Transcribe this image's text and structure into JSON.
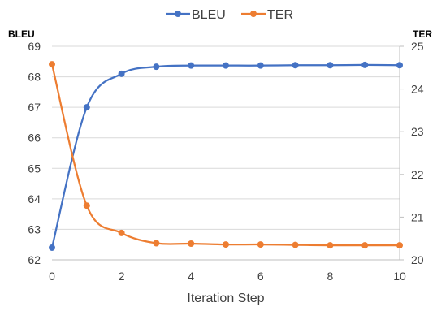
{
  "chart_data": {
    "type": "line",
    "x": [
      0,
      1,
      2,
      3,
      4,
      5,
      6,
      7,
      8,
      9,
      10
    ],
    "series": [
      {
        "name": "BLEU",
        "axis": "left",
        "color": "#4472C4",
        "values": [
          62.4,
          67.0,
          68.1,
          68.33,
          68.37,
          68.37,
          68.37,
          68.38,
          68.38,
          68.39,
          68.38
        ]
      },
      {
        "name": "TER",
        "axis": "right",
        "color": "#ED7D31",
        "values": [
          24.58,
          21.27,
          20.63,
          20.39,
          20.38,
          20.36,
          20.36,
          20.35,
          20.34,
          20.34,
          20.34
        ]
      }
    ],
    "xlabel": "Iteration Step",
    "ylabel_left": "BLEU",
    "ylabel_right": "TER",
    "xlim": [
      0,
      10
    ],
    "xticks": [
      0,
      2,
      4,
      6,
      8,
      10
    ],
    "ylim_left": [
      62,
      69
    ],
    "yticks_left": [
      62,
      63,
      64,
      65,
      66,
      67,
      68,
      69
    ],
    "ylim_right": [
      20,
      25
    ],
    "yticks_right": [
      20,
      21,
      22,
      23,
      24,
      25
    ],
    "grid": true,
    "legend_position": "top-center",
    "smooth": true
  }
}
